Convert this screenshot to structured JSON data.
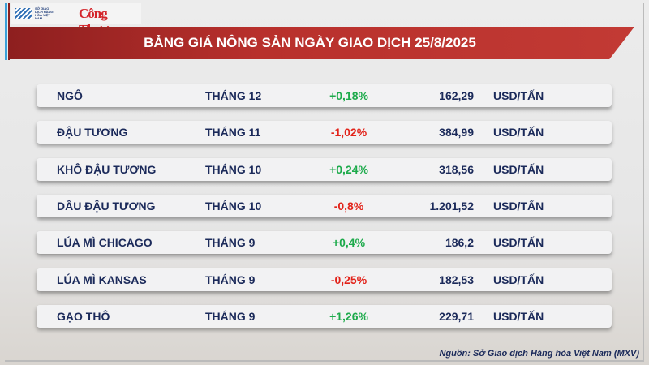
{
  "header": {
    "logo_left": "SỞ GIAO DỊCH HÀNG HÓA VIỆT NAM",
    "logo_right": "Công Thương",
    "title": "BẢNG GIÁ NÔNG SẢN NGÀY GIAO DỊCH 25/8/2025"
  },
  "colors": {
    "up": "#1daa4b",
    "down": "#e2231a",
    "banner": "#b8302c",
    "text": "#1b2a5a"
  },
  "rows": [
    {
      "name": "NGÔ",
      "month": "THÁNG 12",
      "change": "+0,18%",
      "direction": "up",
      "price": "162,29",
      "unit": "USD/TẤN"
    },
    {
      "name": "ĐẬU TƯƠNG",
      "month": "THÁNG 11",
      "change": "-1,02%",
      "direction": "down",
      "price": "384,99",
      "unit": "USD/TẤN"
    },
    {
      "name": "KHÔ ĐẬU TƯƠNG",
      "month": "THÁNG 10",
      "change": "+0,24%",
      "direction": "up",
      "price": "318,56",
      "unit": "USD/TẤN"
    },
    {
      "name": "DẦU ĐẬU TƯƠNG",
      "month": "THÁNG 10",
      "change": "-0,8%",
      "direction": "down",
      "price": "1.201,52",
      "unit": "USD/TẤN"
    },
    {
      "name": "LÚA MÌ CHICAGO",
      "month": "THÁNG 9",
      "change": "+0,4%",
      "direction": "up",
      "price": "186,2",
      "unit": "USD/TẤN"
    },
    {
      "name": "LÚA MÌ KANSAS",
      "month": "THÁNG 9",
      "change": "-0,25%",
      "direction": "down",
      "price": "182,53",
      "unit": "USD/TẤN"
    },
    {
      "name": "GẠO THÔ",
      "month": "THÁNG 9",
      "change": "+1,26%",
      "direction": "up",
      "price": "229,71",
      "unit": "USD/TẤN"
    }
  ],
  "footer": {
    "source": "Nguồn: Sở Giao dịch Hàng hóa Việt Nam (MXV)"
  }
}
